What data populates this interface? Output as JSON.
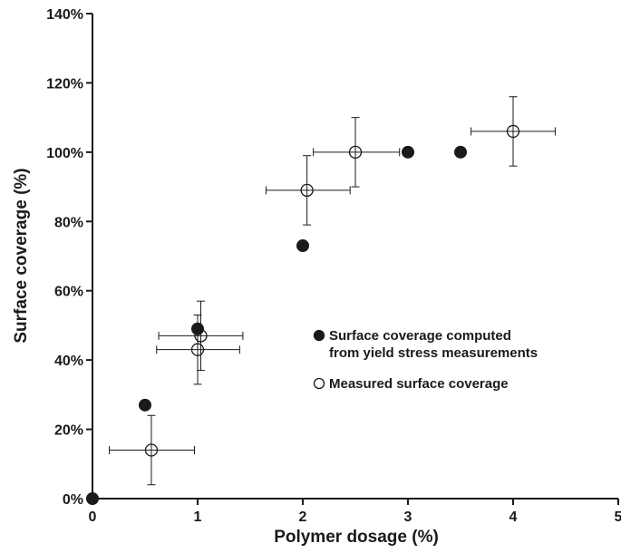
{
  "chart_data": {
    "type": "scatter",
    "title": "",
    "xlabel": "Polymer dosage (%)",
    "ylabel": "Surface coverage (%)",
    "xlim": [
      0,
      5
    ],
    "ylim": [
      0,
      140
    ],
    "x_ticks": [
      0,
      1,
      2,
      3,
      4,
      5
    ],
    "x_tick_labels": [
      "0",
      "1",
      "2",
      "3",
      "4",
      "5"
    ],
    "y_ticks": [
      0,
      20,
      40,
      60,
      80,
      100,
      120,
      140
    ],
    "y_tick_labels": [
      "0%",
      "20%",
      "40%",
      "60%",
      "80%",
      "100%",
      "120%",
      "140%"
    ],
    "grid": false,
    "legend_position": "center-right",
    "series": [
      {
        "name": "Surface coverage computed from yield stress measurements",
        "legend_lines": [
          "Surface coverage computed",
          "from yield stress measurements"
        ],
        "marker": "filled-circle",
        "color": "#1a1a1a",
        "points": [
          {
            "x": 0,
            "y": 0
          },
          {
            "x": 0.5,
            "y": 27
          },
          {
            "x": 1.0,
            "y": 49
          },
          {
            "x": 2.0,
            "y": 73
          },
          {
            "x": 3.0,
            "y": 100
          },
          {
            "x": 3.5,
            "y": 100
          }
        ]
      },
      {
        "name": "Measured surface coverage",
        "legend_lines": [
          "Measured surface coverage"
        ],
        "marker": "open-circle",
        "color": "#1a1a1a",
        "points": [
          {
            "x": 0.56,
            "y": 14,
            "x_err": [
              0.16,
              0.97
            ],
            "y_err": [
              4,
              24
            ]
          },
          {
            "x": 1.0,
            "y": 43,
            "x_err": [
              0.61,
              1.4
            ],
            "y_err": [
              33,
              53
            ]
          },
          {
            "x": 1.03,
            "y": 47,
            "x_err": [
              0.63,
              1.43
            ],
            "y_err": [
              37,
              57
            ]
          },
          {
            "x": 2.04,
            "y": 89,
            "x_err": [
              1.65,
              2.45
            ],
            "y_err": [
              79,
              99
            ]
          },
          {
            "x": 2.5,
            "y": 100,
            "x_err": [
              2.1,
              2.92
            ],
            "y_err": [
              90,
              110
            ]
          },
          {
            "x": 4.0,
            "y": 106,
            "x_err": [
              3.6,
              4.4
            ],
            "y_err": [
              96,
              116
            ]
          }
        ]
      }
    ]
  }
}
